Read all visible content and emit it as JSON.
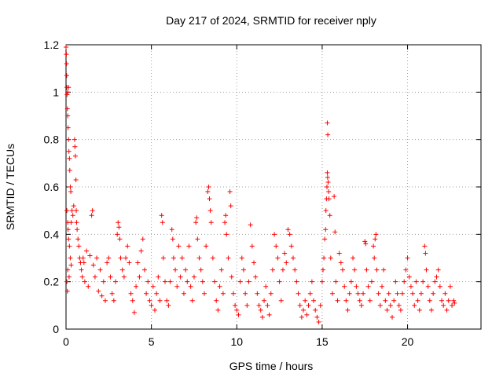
{
  "chart_data": {
    "type": "scatter",
    "title": "Day 217 of 2024, SRMTID for receiver nply",
    "xlabel": "GPS time / hours",
    "ylabel": "SRMTID / TECUs",
    "xlim": [
      0,
      24.3
    ],
    "ylim": [
      0,
      1.2
    ],
    "xticks": [
      0,
      5,
      10,
      15,
      20
    ],
    "yticks": [
      0,
      0.2,
      0.4,
      0.6,
      0.8,
      1,
      1.2
    ],
    "ytick_labels": [
      "0",
      "0.2",
      "0.4",
      "0.6",
      "0.8",
      "1",
      "1.2"
    ],
    "grid": true,
    "marker": "+",
    "color": "#ff0000",
    "series": [
      {
        "name": "SRMTID",
        "points": [
          [
            0.0,
            1.19
          ],
          [
            0.02,
            1.16
          ],
          [
            0.03,
            1.12
          ],
          [
            0.04,
            1.07
          ],
          [
            0.05,
            1.02
          ],
          [
            0.06,
            0.99
          ],
          [
            0.08,
            0.93
          ],
          [
            0.1,
            0.9
          ],
          [
            0.12,
            0.85
          ],
          [
            0.15,
            0.8
          ],
          [
            0.17,
            0.75
          ],
          [
            0.2,
            0.72
          ],
          [
            0.22,
            0.67
          ],
          [
            0.25,
            0.6
          ],
          [
            0.28,
            0.58
          ],
          [
            0.1,
            1.0
          ],
          [
            0.15,
            1.02
          ],
          [
            0.05,
            0.5
          ],
          [
            0.1,
            0.45
          ],
          [
            0.12,
            0.42
          ],
          [
            0.15,
            0.38
          ],
          [
            0.2,
            0.35
          ],
          [
            0.25,
            0.3
          ],
          [
            0.3,
            0.27
          ],
          [
            0.05,
            0.2
          ],
          [
            0.08,
            0.16
          ],
          [
            0.1,
            0.25
          ],
          [
            0.18,
            0.22
          ],
          [
            0.3,
            0.45
          ],
          [
            0.35,
            0.5
          ],
          [
            0.4,
            0.48
          ],
          [
            0.45,
            0.52
          ],
          [
            0.5,
            0.8
          ],
          [
            0.52,
            0.77
          ],
          [
            0.55,
            0.73
          ],
          [
            0.58,
            0.63
          ],
          [
            0.6,
            0.5
          ],
          [
            0.62,
            0.45
          ],
          [
            0.65,
            0.42
          ],
          [
            0.7,
            0.38
          ],
          [
            0.75,
            0.35
          ],
          [
            0.8,
            0.3
          ],
          [
            0.85,
            0.28
          ],
          [
            0.9,
            0.25
          ],
          [
            0.95,
            0.22
          ],
          [
            1.0,
            0.3
          ],
          [
            1.05,
            0.28
          ],
          [
            1.1,
            0.2
          ],
          [
            1.2,
            0.33
          ],
          [
            1.3,
            0.18
          ],
          [
            1.4,
            0.31
          ],
          [
            1.5,
            0.48
          ],
          [
            1.55,
            0.5
          ],
          [
            1.6,
            0.27
          ],
          [
            1.7,
            0.22
          ],
          [
            1.8,
            0.3
          ],
          [
            1.9,
            0.16
          ],
          [
            2.0,
            0.25
          ],
          [
            2.1,
            0.14
          ],
          [
            2.2,
            0.2
          ],
          [
            2.3,
            0.12
          ],
          [
            2.4,
            0.28
          ],
          [
            2.5,
            0.3
          ],
          [
            2.6,
            0.22
          ],
          [
            2.7,
            0.15
          ],
          [
            2.8,
            0.12
          ],
          [
            2.9,
            0.2
          ],
          [
            3.0,
            0.4
          ],
          [
            3.05,
            0.45
          ],
          [
            3.1,
            0.43
          ],
          [
            3.15,
            0.38
          ],
          [
            3.2,
            0.3
          ],
          [
            3.3,
            0.25
          ],
          [
            3.4,
            0.22
          ],
          [
            3.5,
            0.3
          ],
          [
            3.6,
            0.35
          ],
          [
            3.7,
            0.28
          ],
          [
            3.8,
            0.15
          ],
          [
            3.9,
            0.12
          ],
          [
            4.0,
            0.07
          ],
          [
            4.1,
            0.18
          ],
          [
            4.2,
            0.28
          ],
          [
            4.3,
            0.22
          ],
          [
            4.4,
            0.33
          ],
          [
            4.5,
            0.38
          ],
          [
            4.6,
            0.25
          ],
          [
            4.7,
            0.15
          ],
          [
            4.8,
            0.2
          ],
          [
            4.9,
            0.12
          ],
          [
            5.0,
            0.1
          ],
          [
            5.1,
            0.18
          ],
          [
            5.2,
            0.08
          ],
          [
            5.3,
            0.15
          ],
          [
            5.4,
            0.22
          ],
          [
            5.5,
            0.12
          ],
          [
            5.6,
            0.48
          ],
          [
            5.65,
            0.45
          ],
          [
            5.7,
            0.3
          ],
          [
            5.8,
            0.2
          ],
          [
            5.9,
            0.12
          ],
          [
            6.0,
            0.1
          ],
          [
            6.1,
            0.2
          ],
          [
            6.2,
            0.42
          ],
          [
            6.25,
            0.38
          ],
          [
            6.3,
            0.3
          ],
          [
            6.4,
            0.25
          ],
          [
            6.5,
            0.18
          ],
          [
            6.6,
            0.35
          ],
          [
            6.7,
            0.22
          ],
          [
            6.8,
            0.3
          ],
          [
            6.9,
            0.15
          ],
          [
            7.0,
            0.25
          ],
          [
            7.1,
            0.2
          ],
          [
            7.2,
            0.35
          ],
          [
            7.3,
            0.18
          ],
          [
            7.4,
            0.12
          ],
          [
            7.5,
            0.22
          ],
          [
            7.6,
            0.45
          ],
          [
            7.65,
            0.47
          ],
          [
            7.7,
            0.38
          ],
          [
            7.8,
            0.3
          ],
          [
            7.9,
            0.25
          ],
          [
            8.0,
            0.2
          ],
          [
            8.1,
            0.15
          ],
          [
            8.2,
            0.35
          ],
          [
            8.3,
            0.58
          ],
          [
            8.35,
            0.6
          ],
          [
            8.4,
            0.55
          ],
          [
            8.45,
            0.5
          ],
          [
            8.5,
            0.45
          ],
          [
            8.6,
            0.3
          ],
          [
            8.7,
            0.2
          ],
          [
            8.8,
            0.12
          ],
          [
            8.9,
            0.08
          ],
          [
            9.0,
            0.18
          ],
          [
            9.1,
            0.25
          ],
          [
            9.2,
            0.15
          ],
          [
            9.3,
            0.45
          ],
          [
            9.35,
            0.48
          ],
          [
            9.4,
            0.4
          ],
          [
            9.5,
            0.3
          ],
          [
            9.6,
            0.58
          ],
          [
            9.65,
            0.52
          ],
          [
            9.7,
            0.22
          ],
          [
            9.8,
            0.15
          ],
          [
            9.9,
            0.1
          ],
          [
            10.0,
            0.08
          ],
          [
            10.1,
            0.06
          ],
          [
            10.2,
            0.2
          ],
          [
            10.3,
            0.3
          ],
          [
            10.4,
            0.25
          ],
          [
            10.5,
            0.15
          ],
          [
            10.6,
            0.1
          ],
          [
            10.7,
            0.2
          ],
          [
            10.8,
            0.44
          ],
          [
            10.9,
            0.35
          ],
          [
            11.0,
            0.28
          ],
          [
            11.1,
            0.22
          ],
          [
            11.2,
            0.15
          ],
          [
            11.3,
            0.1
          ],
          [
            11.4,
            0.08
          ],
          [
            11.5,
            0.05
          ],
          [
            11.6,
            0.12
          ],
          [
            11.7,
            0.18
          ],
          [
            11.8,
            0.1
          ],
          [
            11.9,
            0.06
          ],
          [
            12.0,
            0.15
          ],
          [
            12.1,
            0.25
          ],
          [
            12.2,
            0.4
          ],
          [
            12.3,
            0.35
          ],
          [
            12.4,
            0.3
          ],
          [
            12.5,
            0.2
          ],
          [
            12.6,
            0.12
          ],
          [
            12.7,
            0.25
          ],
          [
            12.8,
            0.32
          ],
          [
            12.9,
            0.28
          ],
          [
            13.0,
            0.42
          ],
          [
            13.1,
            0.4
          ],
          [
            13.2,
            0.35
          ],
          [
            13.3,
            0.3
          ],
          [
            13.4,
            0.25
          ],
          [
            13.5,
            0.2
          ],
          [
            13.6,
            0.15
          ],
          [
            13.7,
            0.1
          ],
          [
            13.8,
            0.05
          ],
          [
            13.9,
            0.08
          ],
          [
            14.0,
            0.12
          ],
          [
            14.1,
            0.06
          ],
          [
            14.2,
            0.1
          ],
          [
            14.3,
            0.15
          ],
          [
            14.4,
            0.2
          ],
          [
            14.5,
            0.12
          ],
          [
            14.6,
            0.08
          ],
          [
            14.7,
            0.05
          ],
          [
            14.8,
            0.03
          ],
          [
            14.9,
            0.1
          ],
          [
            15.0,
            0.2
          ],
          [
            15.05,
            0.25
          ],
          [
            15.1,
            0.3
          ],
          [
            15.15,
            0.38
          ],
          [
            15.2,
            0.42
          ],
          [
            15.22,
            0.5
          ],
          [
            15.25,
            0.55
          ],
          [
            15.28,
            0.6
          ],
          [
            15.3,
            0.66
          ],
          [
            15.32,
            0.64
          ],
          [
            15.35,
            0.62
          ],
          [
            15.38,
            0.58
          ],
          [
            15.4,
            0.55
          ],
          [
            15.45,
            0.48
          ],
          [
            15.3,
            0.87
          ],
          [
            15.33,
            0.82
          ],
          [
            15.5,
            0.3
          ],
          [
            15.6,
            0.15
          ],
          [
            15.7,
            0.56
          ],
          [
            15.75,
            0.41
          ],
          [
            15.8,
            0.2
          ],
          [
            15.9,
            0.12
          ],
          [
            16.0,
            0.32
          ],
          [
            16.1,
            0.28
          ],
          [
            16.2,
            0.25
          ],
          [
            16.3,
            0.18
          ],
          [
            16.4,
            0.12
          ],
          [
            16.5,
            0.08
          ],
          [
            16.6,
            0.15
          ],
          [
            16.7,
            0.2
          ],
          [
            16.8,
            0.3
          ],
          [
            16.9,
            0.25
          ],
          [
            17.0,
            0.18
          ],
          [
            17.1,
            0.15
          ],
          [
            17.2,
            0.12
          ],
          [
            17.3,
            0.1
          ],
          [
            17.4,
            0.15
          ],
          [
            17.5,
            0.37
          ],
          [
            17.55,
            0.36
          ],
          [
            17.6,
            0.25
          ],
          [
            17.7,
            0.18
          ],
          [
            17.8,
            0.12
          ],
          [
            17.9,
            0.2
          ],
          [
            18.0,
            0.35
          ],
          [
            18.05,
            0.3
          ],
          [
            18.1,
            0.38
          ],
          [
            18.15,
            0.4
          ],
          [
            18.2,
            0.25
          ],
          [
            18.3,
            0.15
          ],
          [
            18.4,
            0.1
          ],
          [
            18.5,
            0.18
          ],
          [
            18.6,
            0.25
          ],
          [
            18.7,
            0.12
          ],
          [
            18.8,
            0.08
          ],
          [
            18.9,
            0.15
          ],
          [
            19.0,
            0.1
          ],
          [
            19.1,
            0.05
          ],
          [
            19.2,
            0.12
          ],
          [
            19.3,
            0.2
          ],
          [
            19.4,
            0.15
          ],
          [
            19.5,
            0.1
          ],
          [
            19.6,
            0.08
          ],
          [
            19.7,
            0.15
          ],
          [
            19.8,
            0.2
          ],
          [
            19.9,
            0.25
          ],
          [
            20.0,
            0.3
          ],
          [
            20.1,
            0.22
          ],
          [
            20.2,
            0.18
          ],
          [
            20.3,
            0.15
          ],
          [
            20.4,
            0.1
          ],
          [
            20.5,
            0.2
          ],
          [
            20.6,
            0.12
          ],
          [
            20.7,
            0.08
          ],
          [
            20.8,
            0.15
          ],
          [
            20.9,
            0.2
          ],
          [
            21.0,
            0.35
          ],
          [
            21.05,
            0.32
          ],
          [
            21.1,
            0.25
          ],
          [
            21.2,
            0.18
          ],
          [
            21.3,
            0.12
          ],
          [
            21.4,
            0.08
          ],
          [
            21.5,
            0.15
          ],
          [
            21.6,
            0.2
          ],
          [
            21.7,
            0.22
          ],
          [
            21.8,
            0.25
          ],
          [
            21.9,
            0.18
          ],
          [
            22.0,
            0.12
          ],
          [
            22.1,
            0.1
          ],
          [
            22.2,
            0.15
          ],
          [
            22.3,
            0.08
          ],
          [
            22.4,
            0.12
          ],
          [
            22.5,
            0.18
          ],
          [
            22.6,
            0.1
          ],
          [
            22.7,
            0.12
          ],
          [
            22.75,
            0.11
          ]
        ]
      }
    ]
  }
}
